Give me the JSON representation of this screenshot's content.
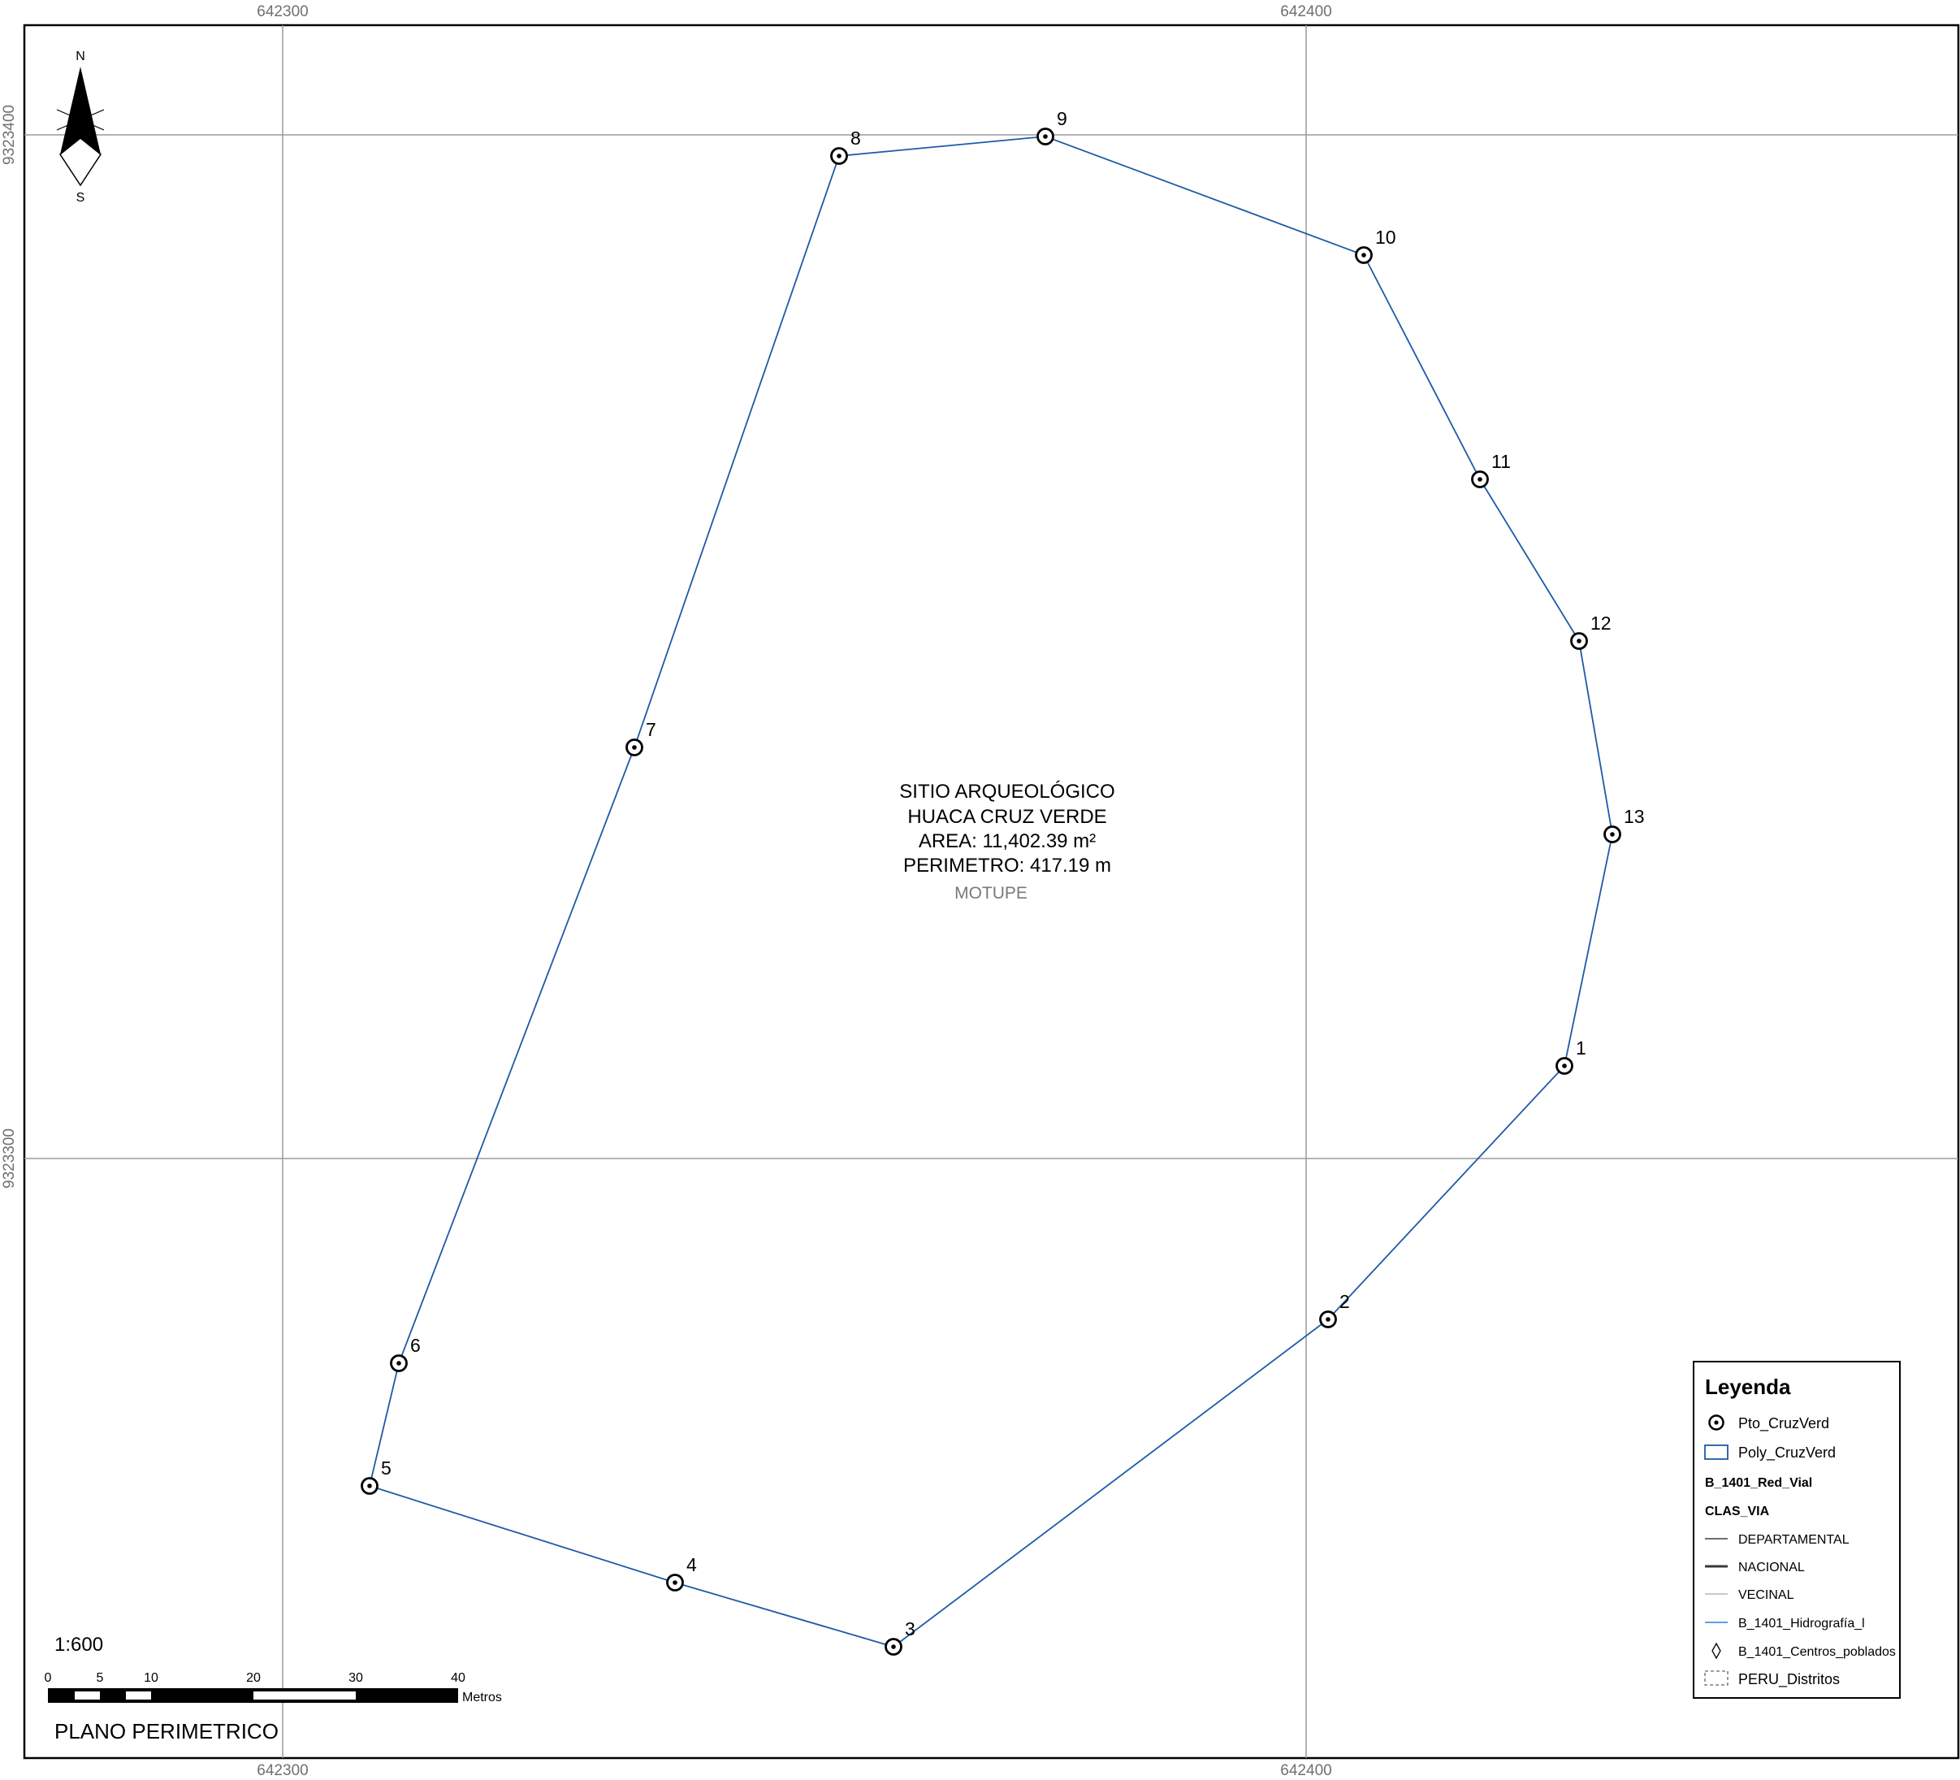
{
  "grid": {
    "x_ticks": [
      "642300",
      "642400"
    ],
    "y_ticks": [
      "9323400",
      "9323300"
    ]
  },
  "north_arrow": {
    "north": "N",
    "south": "S"
  },
  "vertices": [
    {
      "id": "1",
      "label": "1"
    },
    {
      "id": "2",
      "label": "2"
    },
    {
      "id": "3",
      "label": "3"
    },
    {
      "id": "4",
      "label": "4"
    },
    {
      "id": "5",
      "label": "5"
    },
    {
      "id": "6",
      "label": "6"
    },
    {
      "id": "7",
      "label": "7"
    },
    {
      "id": "8",
      "label": "8"
    },
    {
      "id": "9",
      "label": "9"
    },
    {
      "id": "10",
      "label": "10"
    },
    {
      "id": "11",
      "label": "11"
    },
    {
      "id": "12",
      "label": "12"
    },
    {
      "id": "13",
      "label": "13"
    }
  ],
  "site": {
    "line1": "SITIO ARQUEOLÓGICO",
    "line2": "HUACA CRUZ VERDE",
    "line3": "AREA: 11,402.39 m²",
    "line4": "PERIMETRO: 417.19 m",
    "town": "MOTUPE"
  },
  "scale": {
    "ratio": "1:600",
    "ticks": [
      "0",
      "5",
      "10",
      "20",
      "30",
      "40"
    ],
    "unit": "Metros"
  },
  "map_title": "PLANO PERIMETRICO",
  "legend": {
    "title": "Leyenda",
    "items": {
      "points": "Pto_CruzVerd",
      "polygon": "Poly_CruzVerd",
      "roads_layer": "B_1401_Red_Vial",
      "roads_field": "CLAS_VIA",
      "departamental": "DEPARTAMENTAL",
      "nacional": "NACIONAL",
      "vecinal": "VECINAL",
      "hidrografia": "B_1401_Hidrografía_l",
      "centros": "B_1401_Centros_poblados",
      "distritos": "PERU_Distritos"
    }
  },
  "colors": {
    "boundary": "#1f5aa8",
    "grid": "#9a9a9a",
    "frame": "#000000"
  }
}
